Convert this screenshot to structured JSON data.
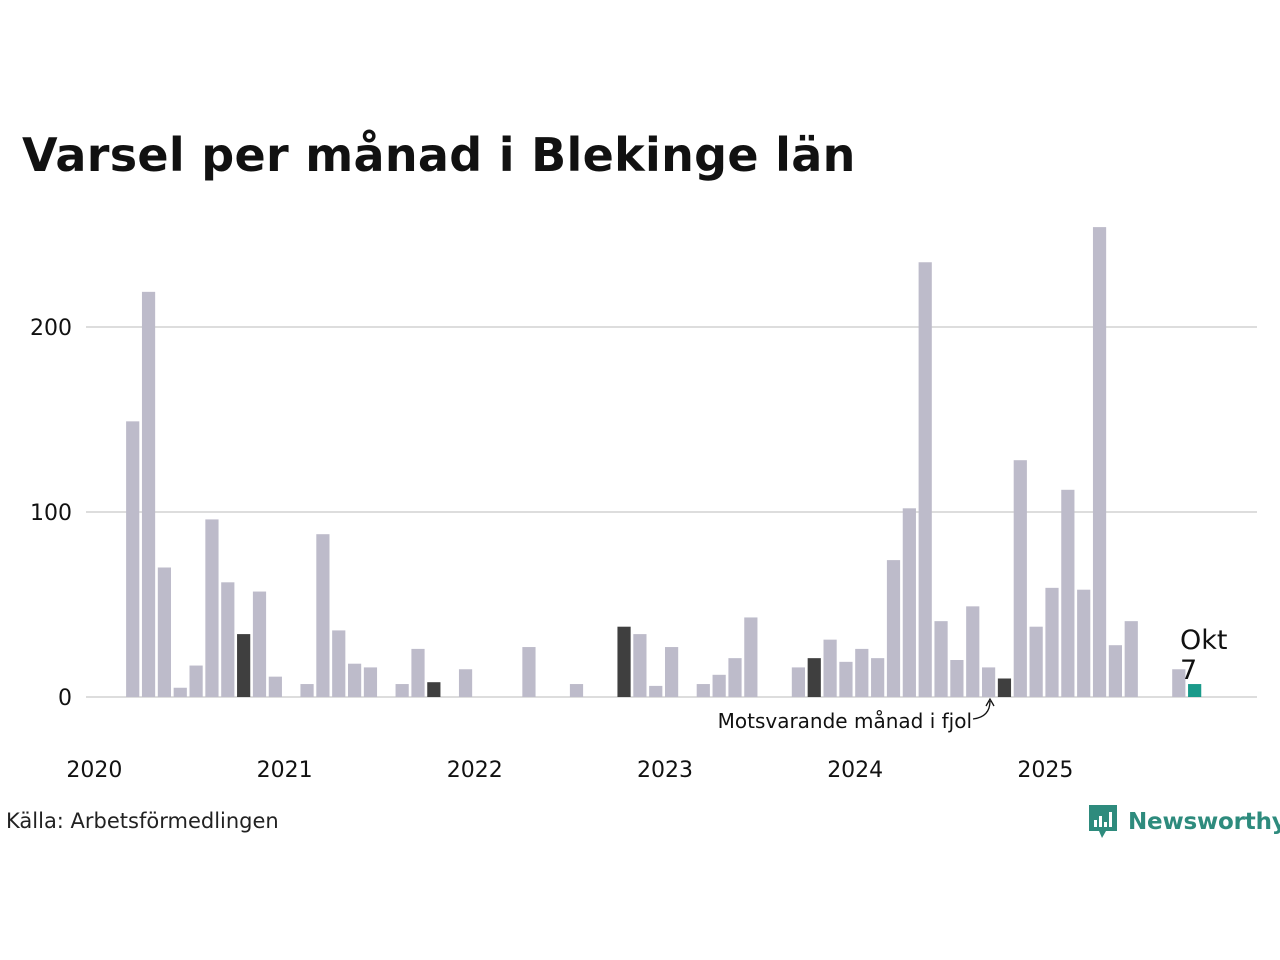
{
  "colors": {
    "bar": "#bdbbca",
    "same_month_prev": "#3f3f3f",
    "current": "#1a9a8a",
    "grid": "#dddddd",
    "text": "#111111",
    "brand": "#2e8b7d"
  },
  "source": "Källa: Arbetsförmedlingen",
  "logo": {
    "text": "Newsworthy",
    "icon": "newsworthy-chart-bubble-icon"
  },
  "chart_data": {
    "type": "bar",
    "title": "Varsel per månad i Blekinge län",
    "xlabel": "",
    "ylabel": "",
    "ylim": [
      0,
      260
    ],
    "grid": true,
    "yticks": [
      0,
      100,
      200
    ],
    "year_labels": [
      "2020",
      "2021",
      "2022",
      "2023",
      "2024",
      "2025"
    ],
    "start_month": "2020-01",
    "values": [
      0,
      0,
      149,
      219,
      70,
      5,
      17,
      96,
      62,
      34,
      57,
      11,
      0,
      7,
      88,
      36,
      18,
      16,
      0,
      7,
      26,
      8,
      0,
      15,
      0,
      0,
      0,
      27,
      0,
      0,
      7,
      0,
      0,
      38,
      34,
      6,
      27,
      0,
      7,
      12,
      21,
      43,
      0,
      0,
      16,
      21,
      31,
      19,
      26,
      21,
      74,
      102,
      235,
      41,
      20,
      49,
      16,
      10,
      128,
      38,
      59,
      112,
      58,
      254,
      28,
      41,
      0,
      0,
      15,
      7
    ],
    "highlight_same_month_indices": [
      9,
      21,
      33,
      45,
      57
    ],
    "current_index": 69,
    "current_label": {
      "month": "Okt",
      "value": "7"
    },
    "annotation": "Motsvarande månad i fjol"
  }
}
